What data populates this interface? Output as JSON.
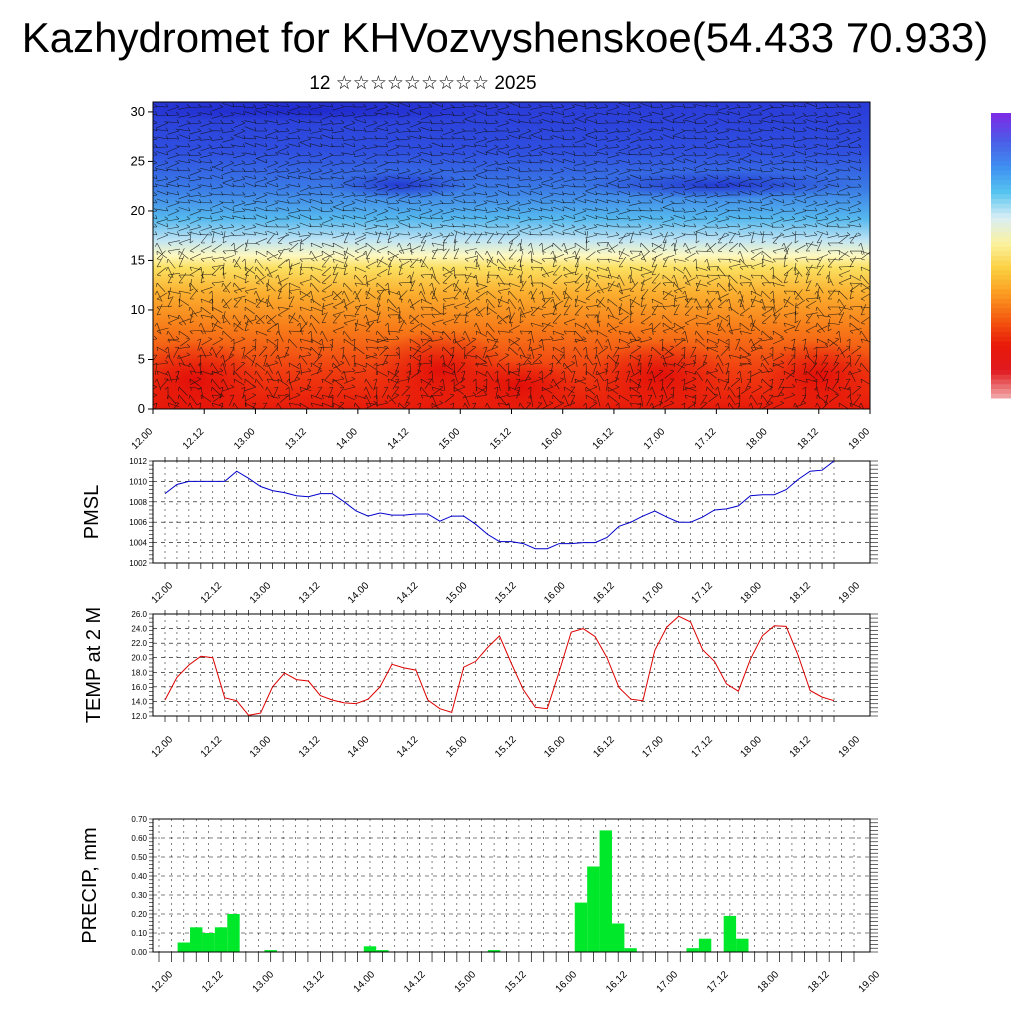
{
  "title": "Kazhydromet for KHVozvyshenskoe(54.433 70.933)",
  "subtitle": "12 ☆☆☆☆☆☆☆☆☆ 2025",
  "chart_data": [
    {
      "type": "heatmap",
      "title": "",
      "ylabel": "",
      "ylim": [
        0,
        31
      ],
      "yticks": [
        "0",
        "5",
        "10",
        "15",
        "20",
        "25",
        "30"
      ],
      "xticks": [
        "12.00",
        "12.12",
        "13.00",
        "13.12",
        "14.00",
        "14.12",
        "15.00",
        "15.12",
        "16.00",
        "16.12",
        "17.00",
        "17.12",
        "18.00",
        "18.12",
        "19.00"
      ],
      "overlay": "wind vectors",
      "colorbar": [
        "#7a2ee6",
        "#4a5de8",
        "#3f8ff0",
        "#55c4f0",
        "#d9eef6",
        "#fbf2a0",
        "#fbd040",
        "#fb9a20",
        "#f45a10",
        "#e81a0a",
        "#e0181e",
        "#f0a0a0"
      ]
    },
    {
      "type": "line",
      "ylabel": "PMSL",
      "ylim": [
        1002,
        1012
      ],
      "yticks": [
        "1002",
        "1004",
        "1006",
        "1008",
        "1010",
        "1012"
      ],
      "xticks": [
        "12.00",
        "12.12",
        "13.00",
        "13.12",
        "14.00",
        "14.12",
        "15.00",
        "15.12",
        "16.00",
        "16.12",
        "17.00",
        "17.12",
        "18.00",
        "18.12",
        "19.00"
      ],
      "color": "#0000cc",
      "values": [
        1008.8,
        1009.7,
        1010.0,
        1010.0,
        1010.0,
        1010.0,
        1011.0,
        1010.3,
        1009.5,
        1009.1,
        1008.9,
        1008.6,
        1008.5,
        1008.8,
        1008.8,
        1008.0,
        1007.1,
        1006.6,
        1006.9,
        1006.7,
        1006.7,
        1006.8,
        1006.8,
        1006.1,
        1006.6,
        1006.6,
        1005.8,
        1004.8,
        1004.1,
        1004.1,
        1003.9,
        1003.4,
        1003.4,
        1003.9,
        1003.9,
        1004.0,
        1004.0,
        1004.5,
        1005.6,
        1006.0,
        1006.6,
        1007.1,
        1006.5,
        1006.0,
        1006.0,
        1006.5,
        1007.2,
        1007.3,
        1007.6,
        1008.6,
        1008.7,
        1008.7,
        1009.2,
        1010.2,
        1011.0,
        1011.1,
        1012.0
      ]
    },
    {
      "type": "line",
      "ylabel": "TEMP at 2 M",
      "ylim": [
        12,
        26
      ],
      "yticks": [
        "12.0",
        "14.0",
        "16.0",
        "18.0",
        "20.0",
        "22.0",
        "24.0",
        "26.0"
      ],
      "xticks": [
        "12.00",
        "12.12",
        "13.00",
        "13.12",
        "14.00",
        "14.12",
        "15.00",
        "15.12",
        "16.00",
        "16.12",
        "17.00",
        "17.12",
        "18.00",
        "18.12",
        "19.00"
      ],
      "color": "#dd0000",
      "values": [
        14.2,
        17.3,
        19.0,
        20.2,
        20.0,
        14.5,
        14.1,
        12.1,
        12.4,
        16.0,
        17.9,
        17.0,
        16.8,
        14.8,
        14.2,
        13.8,
        13.7,
        14.3,
        16.0,
        19.1,
        18.6,
        18.3,
        14.2,
        13.0,
        12.5,
        18.7,
        19.5,
        21.4,
        23.0,
        19.2,
        15.6,
        13.2,
        13.0,
        18.1,
        23.5,
        24.0,
        22.9,
        20.0,
        15.9,
        14.3,
        14.1,
        21.0,
        24.2,
        25.7,
        24.9,
        21.1,
        19.5,
        16.4,
        15.4,
        19.8,
        23.0,
        24.4,
        24.3,
        20.3,
        15.5,
        14.6,
        14.1
      ]
    },
    {
      "type": "bar",
      "ylabel": "PRECIP, mm",
      "ylim": [
        0,
        0.7
      ],
      "yticks": [
        "0.00",
        "0.10",
        "0.20",
        "0.30",
        "0.40",
        "0.50",
        "0.60",
        "0.70"
      ],
      "xticks": [
        "12.00",
        "12.12",
        "13.00",
        "13.12",
        "14.00",
        "14.12",
        "15.00",
        "15.12",
        "16.00",
        "16.12",
        "17.00",
        "17.12",
        "18.00",
        "18.12",
        "19.00"
      ],
      "color": "#00e82a",
      "values": [
        0,
        0,
        0.05,
        0.13,
        0.1,
        0.13,
        0.2,
        0,
        0,
        0.01,
        0,
        0,
        0,
        0,
        0,
        0,
        0,
        0.03,
        0.01,
        0,
        0,
        0,
        0,
        0,
        0,
        0,
        0,
        0.01,
        0,
        0,
        0,
        0,
        0,
        0,
        0.26,
        0.45,
        0.64,
        0.15,
        0.02,
        0,
        0,
        0,
        0,
        0.02,
        0.07,
        0,
        0.19,
        0.07,
        0,
        0,
        0,
        0,
        0,
        0,
        0,
        0,
        0
      ]
    }
  ]
}
